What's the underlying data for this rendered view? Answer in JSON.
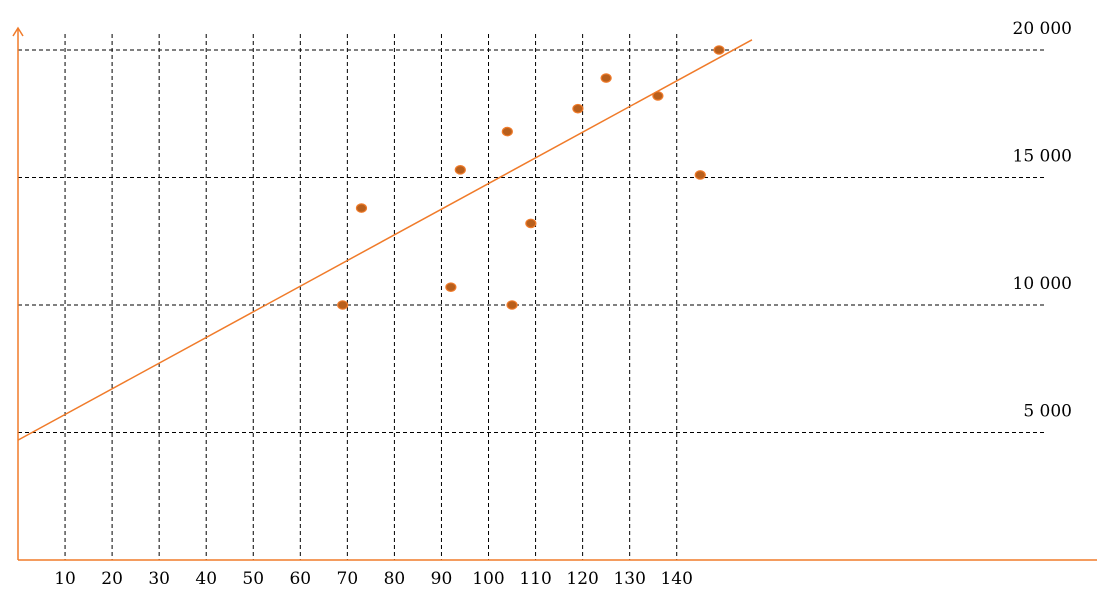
{
  "chart_data": {
    "type": "scatter",
    "title": "",
    "xlabel": "",
    "ylabel": "",
    "x_ticks": [
      10,
      20,
      30,
      40,
      50,
      60,
      70,
      80,
      90,
      100,
      110,
      120,
      130,
      140
    ],
    "y_ticks": [
      5000,
      10000,
      15000,
      20000
    ],
    "x_tick_labels": [
      "10",
      "20",
      "30",
      "40",
      "50",
      "60",
      "70",
      "80",
      "90",
      "100",
      "110",
      "120",
      "130",
      "140"
    ],
    "y_tick_labels": [
      "5 000",
      "10 000",
      "15 000",
      "20 000"
    ],
    "xlim": [
      0,
      156
    ],
    "ylim": [
      0,
      20000
    ],
    "grid": true,
    "points": [
      {
        "x": 69,
        "y": 10000
      },
      {
        "x": 73,
        "y": 13800
      },
      {
        "x": 92,
        "y": 10700
      },
      {
        "x": 94,
        "y": 15300
      },
      {
        "x": 104,
        "y": 16800
      },
      {
        "x": 105,
        "y": 10000
      },
      {
        "x": 109,
        "y": 13200
      },
      {
        "x": 119,
        "y": 17700
      },
      {
        "x": 125,
        "y": 18900
      },
      {
        "x": 136,
        "y": 18200
      },
      {
        "x": 145,
        "y": 15100
      },
      {
        "x": 149,
        "y": 20000
      }
    ],
    "trendline": {
      "x": [
        0,
        156
      ],
      "y": [
        4700,
        20400
      ]
    },
    "colors": {
      "axis": "#f07b2a",
      "trend": "#f07b2a",
      "point_fill": "#b85f1c",
      "point_stroke": "#f07b2a",
      "grid": "#000000"
    }
  }
}
